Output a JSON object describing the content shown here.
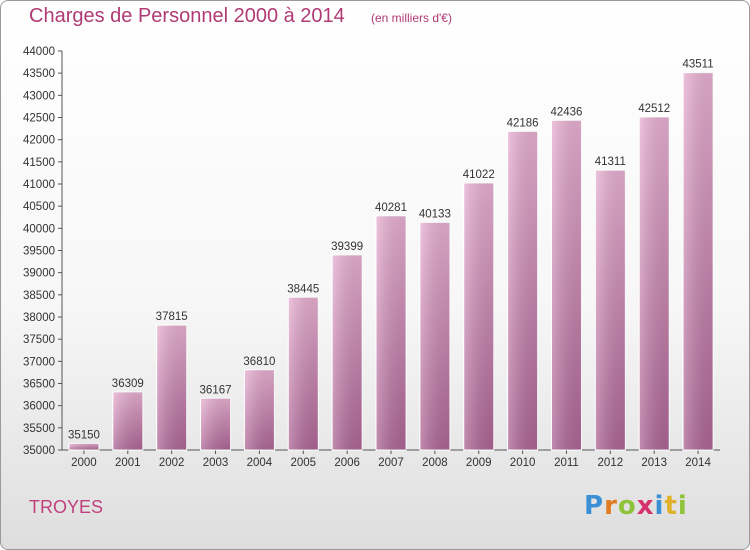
{
  "chart_data": {
    "type": "bar",
    "title": "Charges de Personnel 2000 à 2014",
    "subtitle": "(en milliers d'€)",
    "categories": [
      "2000",
      "2001",
      "2002",
      "2003",
      "2004",
      "2005",
      "2006",
      "2007",
      "2008",
      "2009",
      "2010",
      "2011",
      "2012",
      "2013",
      "2014"
    ],
    "values": [
      35150,
      36309,
      37815,
      36167,
      36810,
      38445,
      39399,
      40281,
      40133,
      41022,
      42186,
      42436,
      41311,
      42512,
      43511
    ],
    "ylim": [
      35000,
      44000
    ],
    "yticks": [
      35000,
      35500,
      36000,
      36500,
      37000,
      37500,
      38000,
      38500,
      39000,
      39500,
      40000,
      40500,
      41000,
      41500,
      42000,
      42500,
      43000,
      43500,
      44000
    ],
    "grid": false,
    "bar_color": "#d88fb8"
  },
  "footer": {
    "place": "TROYES",
    "logo": [
      "P",
      "r",
      "o",
      "x",
      "i",
      "t",
      "i"
    ],
    "logo_colors": [
      "#3b8fd4",
      "#e07b1f",
      "#8fc43a",
      "#d6336c",
      "#3b8fd4",
      "#e0b12a",
      "#8fc43a"
    ]
  }
}
